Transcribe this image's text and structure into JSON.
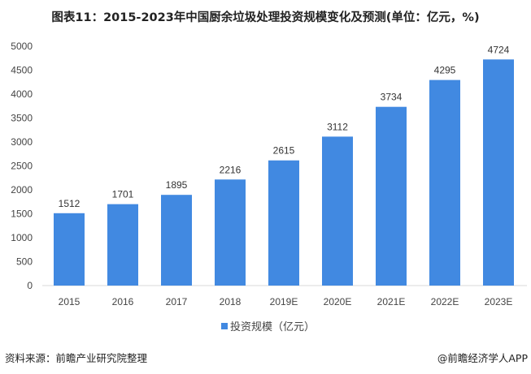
{
  "title": "图表11：2015-2023年中国厨余垃圾处理投资规模变化及预测(单位：亿元，%)",
  "source": "资料来源：前瞻产业研究院整理",
  "brand": "@前瞻经济学人APP",
  "chart_data": {
    "type": "bar",
    "categories": [
      "2015",
      "2016",
      "2017",
      "2018",
      "2019E",
      "2020E",
      "2021E",
      "2022E",
      "2023E"
    ],
    "series": [
      {
        "name": "投资规模（亿元）",
        "values": [
          1512,
          1701,
          1895,
          2216,
          2615,
          3112,
          3734,
          4295,
          4724
        ],
        "color": "#4189e1"
      }
    ],
    "ylim": [
      0,
      5000
    ],
    "yticks": [
      0,
      500,
      1000,
      1500,
      2000,
      2500,
      3000,
      3500,
      4000,
      4500,
      5000
    ],
    "grid": false,
    "legend": "bottom",
    "data_labels": true
  }
}
